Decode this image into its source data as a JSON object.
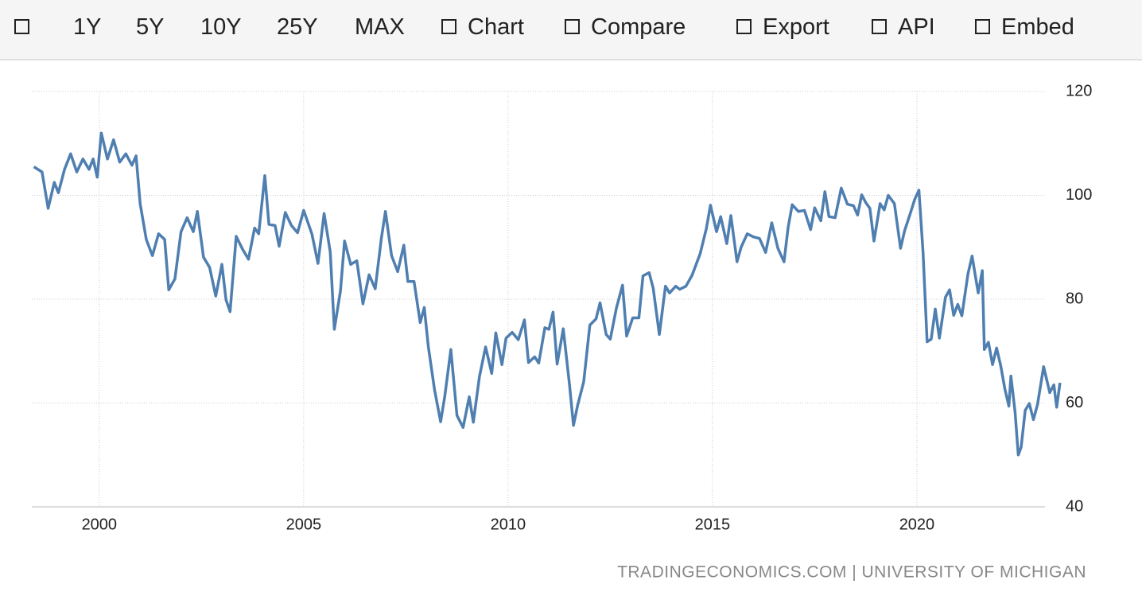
{
  "toolbar": {
    "periods": [
      "1Y",
      "5Y",
      "10Y",
      "25Y",
      "MAX"
    ],
    "actions": [
      "Chart",
      "Compare",
      "Export",
      "API",
      "Embed"
    ]
  },
  "chart_data": {
    "type": "line",
    "color": "#4f7fb0",
    "source": "TRADINGECONOMICS.COM | UNIVERSITY OF MICHIGAN",
    "xlim": [
      1998.35,
      2023.6
    ],
    "xticks": [
      2000,
      2005,
      2010,
      2015,
      2020
    ],
    "ylim": [
      40,
      120
    ],
    "yticks": [
      40,
      60,
      80,
      100,
      120
    ],
    "grid": true,
    "x": [
      1998.4,
      1998.6,
      1998.75,
      1998.9,
      1999.0,
      1999.15,
      1999.3,
      1999.45,
      1999.6,
      1999.75,
      1999.85,
      1999.95,
      2000.05,
      2000.2,
      2000.35,
      2000.5,
      2000.65,
      2000.8,
      2000.9,
      2001.0,
      2001.15,
      2001.3,
      2001.45,
      2001.6,
      2001.7,
      2001.85,
      2002.0,
      2002.15,
      2002.3,
      2002.4,
      2002.55,
      2002.7,
      2002.85,
      2003.0,
      2003.1,
      2003.2,
      2003.35,
      2003.5,
      2003.65,
      2003.8,
      2003.9,
      2004.05,
      2004.15,
      2004.3,
      2004.4,
      2004.55,
      2004.7,
      2004.85,
      2005.0,
      2005.2,
      2005.35,
      2005.5,
      2005.65,
      2005.75,
      2005.9,
      2006.0,
      2006.15,
      2006.3,
      2006.45,
      2006.6,
      2006.75,
      2006.9,
      2007.0,
      2007.15,
      2007.3,
      2007.45,
      2007.55,
      2007.7,
      2007.85,
      2007.95,
      2008.05,
      2008.2,
      2008.35,
      2008.45,
      2008.6,
      2008.75,
      2008.9,
      2009.05,
      2009.15,
      2009.3,
      2009.45,
      2009.6,
      2009.7,
      2009.85,
      2009.95,
      2010.1,
      2010.25,
      2010.4,
      2010.5,
      2010.65,
      2010.75,
      2010.9,
      2011.0,
      2011.1,
      2011.2,
      2011.35,
      2011.5,
      2011.6,
      2011.7,
      2011.85,
      2012.0,
      2012.15,
      2012.25,
      2012.4,
      2012.5,
      2012.65,
      2012.8,
      2012.9,
      2013.05,
      2013.2,
      2013.3,
      2013.45,
      2013.55,
      2013.7,
      2013.85,
      2013.95,
      2014.1,
      2014.2,
      2014.35,
      2014.5,
      2014.7,
      2014.85,
      2014.95,
      2015.1,
      2015.2,
      2015.35,
      2015.45,
      2015.6,
      2015.7,
      2015.85,
      2016.0,
      2016.15,
      2016.3,
      2016.45,
      2016.6,
      2016.75,
      2016.85,
      2016.95,
      2017.1,
      2017.25,
      2017.4,
      2017.5,
      2017.65,
      2017.75,
      2017.85,
      2018.0,
      2018.15,
      2018.3,
      2018.45,
      2018.55,
      2018.65,
      2018.75,
      2018.85,
      2018.95,
      2019.1,
      2019.2,
      2019.3,
      2019.45,
      2019.6,
      2019.7,
      2019.85,
      2019.95,
      2020.05,
      2020.15,
      2020.25,
      2020.35,
      2020.45,
      2020.55,
      2020.7,
      2020.8,
      2020.9,
      2021.0,
      2021.1,
      2021.25,
      2021.35,
      2021.5,
      2021.6,
      2021.65,
      2021.75,
      2021.85,
      2021.95,
      2022.05,
      2022.15,
      2022.25,
      2022.3,
      2022.4,
      2022.48,
      2022.55,
      2022.65,
      2022.75,
      2022.85,
      2022.95,
      2023.1,
      2023.25,
      2023.35,
      2023.42,
      2023.5
    ],
    "values": [
      105.5,
      104.5,
      97.5,
      102.5,
      100.5,
      105,
      108,
      104.5,
      107,
      105,
      107,
      103.5,
      112,
      107,
      110.7,
      106.4,
      108,
      105.8,
      107.6,
      98.4,
      91.5,
      88.4,
      92.6,
      91.5,
      81.8,
      83.9,
      93,
      95.7,
      93,
      96.9,
      88.1,
      86.1,
      80.6,
      86.7,
      79.9,
      77.6,
      92.1,
      89.7,
      87.7,
      93.7,
      92.6,
      103.8,
      94.4,
      94.2,
      90.2,
      96.7,
      94.2,
      92.8,
      97.1,
      92.6,
      86.9,
      96.5,
      89.1,
      74.2,
      81.6,
      91.2,
      86.7,
      87.4,
      79.1,
      84.7,
      82,
      91.7,
      96.9,
      88.4,
      85.3,
      90.4,
      83.4,
      83.4,
      75.5,
      78.4,
      70.8,
      62.6,
      56.4,
      61.2,
      70.3,
      57.6,
      55.3,
      61.2,
      56.3,
      65.1,
      70.8,
      65.7,
      73.5,
      67.4,
      72.5,
      73.6,
      72.2,
      76,
      67.8,
      68.9,
      67.7,
      74.5,
      74.2,
      77.5,
      67.5,
      74.3,
      63.7,
      55.7,
      59.5,
      64.1,
      75,
      76.2,
      79.3,
      73.2,
      72.3,
      78.3,
      82.7,
      72.9,
      76.4,
      76.4,
      84.5,
      85.1,
      82.1,
      73.2,
      82.5,
      81.2,
      82.5,
      81.9,
      82.5,
      84.6,
      88.8,
      93.6,
      98.1,
      93,
      95.9,
      90.7,
      96.1,
      87.2,
      90,
      92.6,
      92,
      91.7,
      89,
      94.7,
      89.8,
      87.2,
      93.8,
      98.2,
      96.9,
      97.1,
      93.4,
      97.6,
      95.1,
      100.7,
      95.9,
      95.7,
      101.4,
      98.3,
      98,
      96.2,
      100.1,
      98.6,
      97.5,
      91.2,
      98.4,
      97.2,
      100,
      98.4,
      89.8,
      93.2,
      96.8,
      99.3,
      101,
      89.1,
      71.8,
      72.3,
      78.1,
      72.5,
      80.4,
      81.8,
      76.9,
      79,
      76.8,
      84.9,
      88.3,
      81.2,
      85.5,
      70.3,
      71.7,
      67.4,
      70.6,
      67.2,
      62.8,
      59.4,
      65.2,
      58.4,
      50,
      51.5,
      58.6,
      59.9,
      56.8,
      59.7,
      67,
      62,
      63.5,
      59.2,
      63.9
    ]
  }
}
